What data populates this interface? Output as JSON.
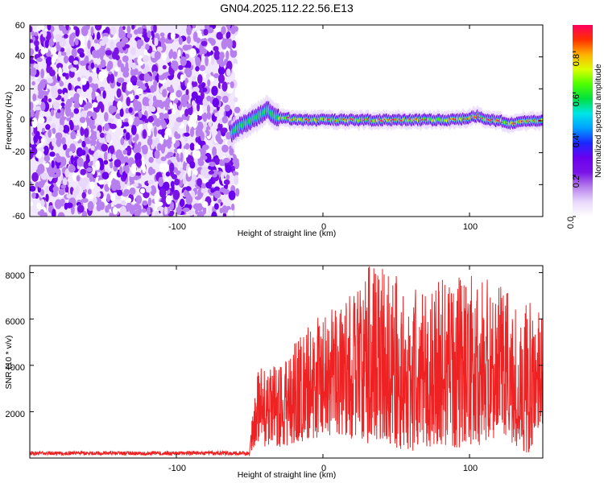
{
  "figure": {
    "title": "GN04.2025.112.22.56.E13"
  },
  "colors": {
    "snr_line": "#ee2222",
    "axes": "#000000",
    "colormap": [
      "#ffffff",
      "#e8d8fc",
      "#b880ee",
      "#7a14e6",
      "#6a00ee",
      "#1a28ff",
      "#00a0ff",
      "#00e6e6",
      "#00e040",
      "#50ff00",
      "#dcff00",
      "#ffb000",
      "#ff3000",
      "#ff0060"
    ]
  },
  "chart_data": [
    {
      "type": "heatmap",
      "title": "GN04.2025.112.22.56.E13",
      "xlabel": "Height of straight line (km)",
      "ylabel": "Frequency (Hz)",
      "xlim": [
        -200,
        150
      ],
      "ylim": [
        -60,
        60
      ],
      "xticks": [
        -100,
        0,
        100
      ],
      "yticks": [
        -60,
        -40,
        -20,
        0,
        20,
        40,
        60
      ],
      "noise_region_x": [
        -200,
        -60
      ],
      "signal_track": {
        "x": [
          -62,
          -58,
          -54,
          -50,
          -46,
          -42,
          -38,
          -34,
          -30,
          -20,
          -10,
          0,
          20,
          40,
          60,
          80,
          95,
          100,
          105,
          110,
          120,
          130,
          140,
          150
        ],
        "frequency": [
          -8,
          -4,
          -2,
          0,
          2,
          4,
          7,
          4,
          2,
          1,
          0.5,
          0.5,
          0.5,
          0.3,
          0.5,
          0.5,
          1,
          2,
          3,
          1,
          0,
          -2,
          0,
          0
        ]
      },
      "colorbar": {
        "label": "Normalized spectral amplitude",
        "range": [
          0,
          0.93
        ],
        "ticks": [
          0.0,
          0.2,
          0.4,
          0.6,
          0.8
        ],
        "tick_labels": [
          "0.0",
          "0.2",
          "0.4",
          "0.6",
          "0.8"
        ]
      },
      "grid": false
    },
    {
      "type": "line",
      "xlabel": "Height of straight line (km)",
      "ylabel": "SNR (10 * v/v)",
      "xlim": [
        -200,
        150
      ],
      "ylim": [
        0,
        8300
      ],
      "xticks": [
        -100,
        0,
        100
      ],
      "yticks": [
        2000,
        4000,
        6000,
        8000
      ],
      "series": [
        {
          "envelope_x": [
            -200,
            -150,
            -100,
            -60,
            -50,
            -48,
            -45,
            -40,
            -35,
            -30,
            -20,
            -10,
            0,
            10,
            20,
            30,
            40,
            50,
            60,
            80,
            100,
            120,
            140,
            150
          ],
          "envelope_min": [
            120,
            120,
            120,
            120,
            120,
            400,
            700,
            500,
            300,
            400,
            600,
            800,
            900,
            1000,
            800,
            600,
            800,
            400,
            300,
            600,
            300,
            900,
            200,
            1500
          ],
          "envelope_max": [
            300,
            300,
            300,
            300,
            300,
            2000,
            3600,
            4400,
            4000,
            4000,
            5000,
            5800,
            6200,
            6800,
            7200,
            8300,
            8300,
            8200,
            7500,
            7800,
            8000,
            7500,
            7000,
            6000
          ]
        }
      ],
      "grid": false
    }
  ]
}
